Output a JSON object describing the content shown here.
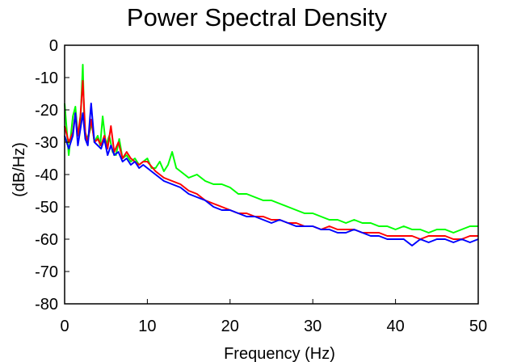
{
  "chart_data": {
    "type": "line",
    "title": "Power Spectral Density",
    "xlabel": "Frequency (Hz)",
    "ylabel": "(dB/Hz)",
    "xlim": [
      0,
      50
    ],
    "ylim": [
      -80,
      0
    ],
    "xticks": [
      0,
      10,
      20,
      30,
      40,
      50
    ],
    "yticks": [
      0,
      -10,
      -20,
      -30,
      -40,
      -50,
      -60,
      -70,
      -80
    ],
    "grid": false,
    "legend": "none",
    "series": [
      {
        "color": "#00ff00",
        "x": [
          0,
          0.5,
          1,
          1.3,
          1.6,
          1.9,
          2.2,
          2.4,
          2.7,
          3.0,
          3.3,
          3.6,
          4.0,
          4.3,
          4.6,
          5.0,
          5.4,
          5.8,
          6.2,
          6.6,
          7.0,
          7.5,
          8.0,
          8.5,
          9.0,
          9.5,
          10,
          10.5,
          11,
          11.5,
          12,
          12.5,
          13,
          13.5,
          14,
          15,
          16,
          17,
          18,
          19,
          20,
          21,
          22,
          23,
          24,
          25,
          26,
          27,
          28,
          29,
          30,
          31,
          32,
          33,
          34,
          35,
          36,
          37,
          38,
          39,
          40,
          41,
          42,
          43,
          44,
          45,
          46,
          47,
          48,
          49,
          50
        ],
        "y": [
          -18,
          -34,
          -22,
          -19,
          -28,
          -24,
          -6,
          -26,
          -29,
          -27,
          -24,
          -30,
          -28,
          -31,
          -22,
          -31,
          -28,
          -33,
          -34,
          -29,
          -35,
          -34,
          -36,
          -35,
          -37,
          -36,
          -35,
          -38,
          -38,
          -36,
          -39,
          -37,
          -33,
          -38,
          -39,
          -41,
          -40,
          -42,
          -43,
          -43,
          -44,
          -46,
          -46,
          -47,
          -48,
          -48,
          -49,
          -50,
          -51,
          -52,
          -52,
          -53,
          -54,
          -54,
          -55,
          -54,
          -55,
          -55,
          -56,
          -56,
          -57,
          -56,
          -57,
          -57,
          -58,
          -57,
          -57,
          -58,
          -57,
          -56,
          -56
        ]
      },
      {
        "color": "#ff0000",
        "x": [
          0,
          0.5,
          1,
          1.3,
          1.6,
          1.9,
          2.2,
          2.5,
          2.8,
          3.2,
          3.6,
          4.0,
          4.4,
          4.8,
          5.2,
          5.6,
          6.0,
          6.5,
          7.0,
          7.5,
          8.0,
          8.5,
          9.0,
          9.5,
          10,
          11,
          12,
          13,
          14,
          15,
          16,
          17,
          18,
          19,
          20,
          21,
          22,
          23,
          24,
          25,
          26,
          27,
          28,
          29,
          30,
          31,
          32,
          33,
          34,
          35,
          36,
          37,
          38,
          39,
          40,
          41,
          42,
          43,
          44,
          45,
          46,
          47,
          48,
          49,
          50
        ],
        "y": [
          -25,
          -30,
          -27,
          -21,
          -28,
          -22,
          -11,
          -27,
          -30,
          -23,
          -30,
          -29,
          -31,
          -28,
          -32,
          -25,
          -33,
          -30,
          -35,
          -33,
          -35,
          -36,
          -37,
          -36,
          -36,
          -39,
          -41,
          -42,
          -43,
          -45,
          -46,
          -48,
          -49,
          -50,
          -51,
          -52,
          -52,
          -53,
          -53,
          -54,
          -54,
          -55,
          -55,
          -56,
          -56,
          -57,
          -56,
          -57,
          -57,
          -57,
          -58,
          -58,
          -58,
          -59,
          -59,
          -59,
          -59,
          -60,
          -59,
          -59,
          -59,
          -60,
          -60,
          -59,
          -59
        ]
      },
      {
        "color": "#0000ff",
        "x": [
          0,
          0.5,
          1,
          1.3,
          1.6,
          1.9,
          2.2,
          2.5,
          2.8,
          3.2,
          3.6,
          4.0,
          4.4,
          4.8,
          5.2,
          5.6,
          6.0,
          6.5,
          7.0,
          7.5,
          8.0,
          8.5,
          9.0,
          9.5,
          10,
          11,
          12,
          13,
          14,
          15,
          16,
          17,
          18,
          19,
          20,
          21,
          22,
          23,
          24,
          25,
          26,
          27,
          28,
          29,
          30,
          31,
          32,
          33,
          34,
          35,
          36,
          37,
          38,
          39,
          40,
          41,
          42,
          43,
          44,
          45,
          46,
          47,
          48,
          49,
          50
        ],
        "y": [
          -28,
          -32,
          -28,
          -21,
          -31,
          -26,
          -21,
          -29,
          -31,
          -18,
          -30,
          -31,
          -32,
          -29,
          -34,
          -31,
          -34,
          -33,
          -36,
          -35,
          -37,
          -36,
          -38,
          -37,
          -38,
          -40,
          -42,
          -43,
          -44,
          -46,
          -47,
          -48,
          -50,
          -51,
          -51,
          -52,
          -53,
          -53,
          -54,
          -55,
          -54,
          -55,
          -56,
          -56,
          -56,
          -57,
          -57,
          -58,
          -58,
          -57,
          -58,
          -59,
          -59,
          -60,
          -60,
          -60,
          -62,
          -60,
          -61,
          -60,
          -60,
          -61,
          -60,
          -61,
          -60
        ]
      }
    ]
  }
}
